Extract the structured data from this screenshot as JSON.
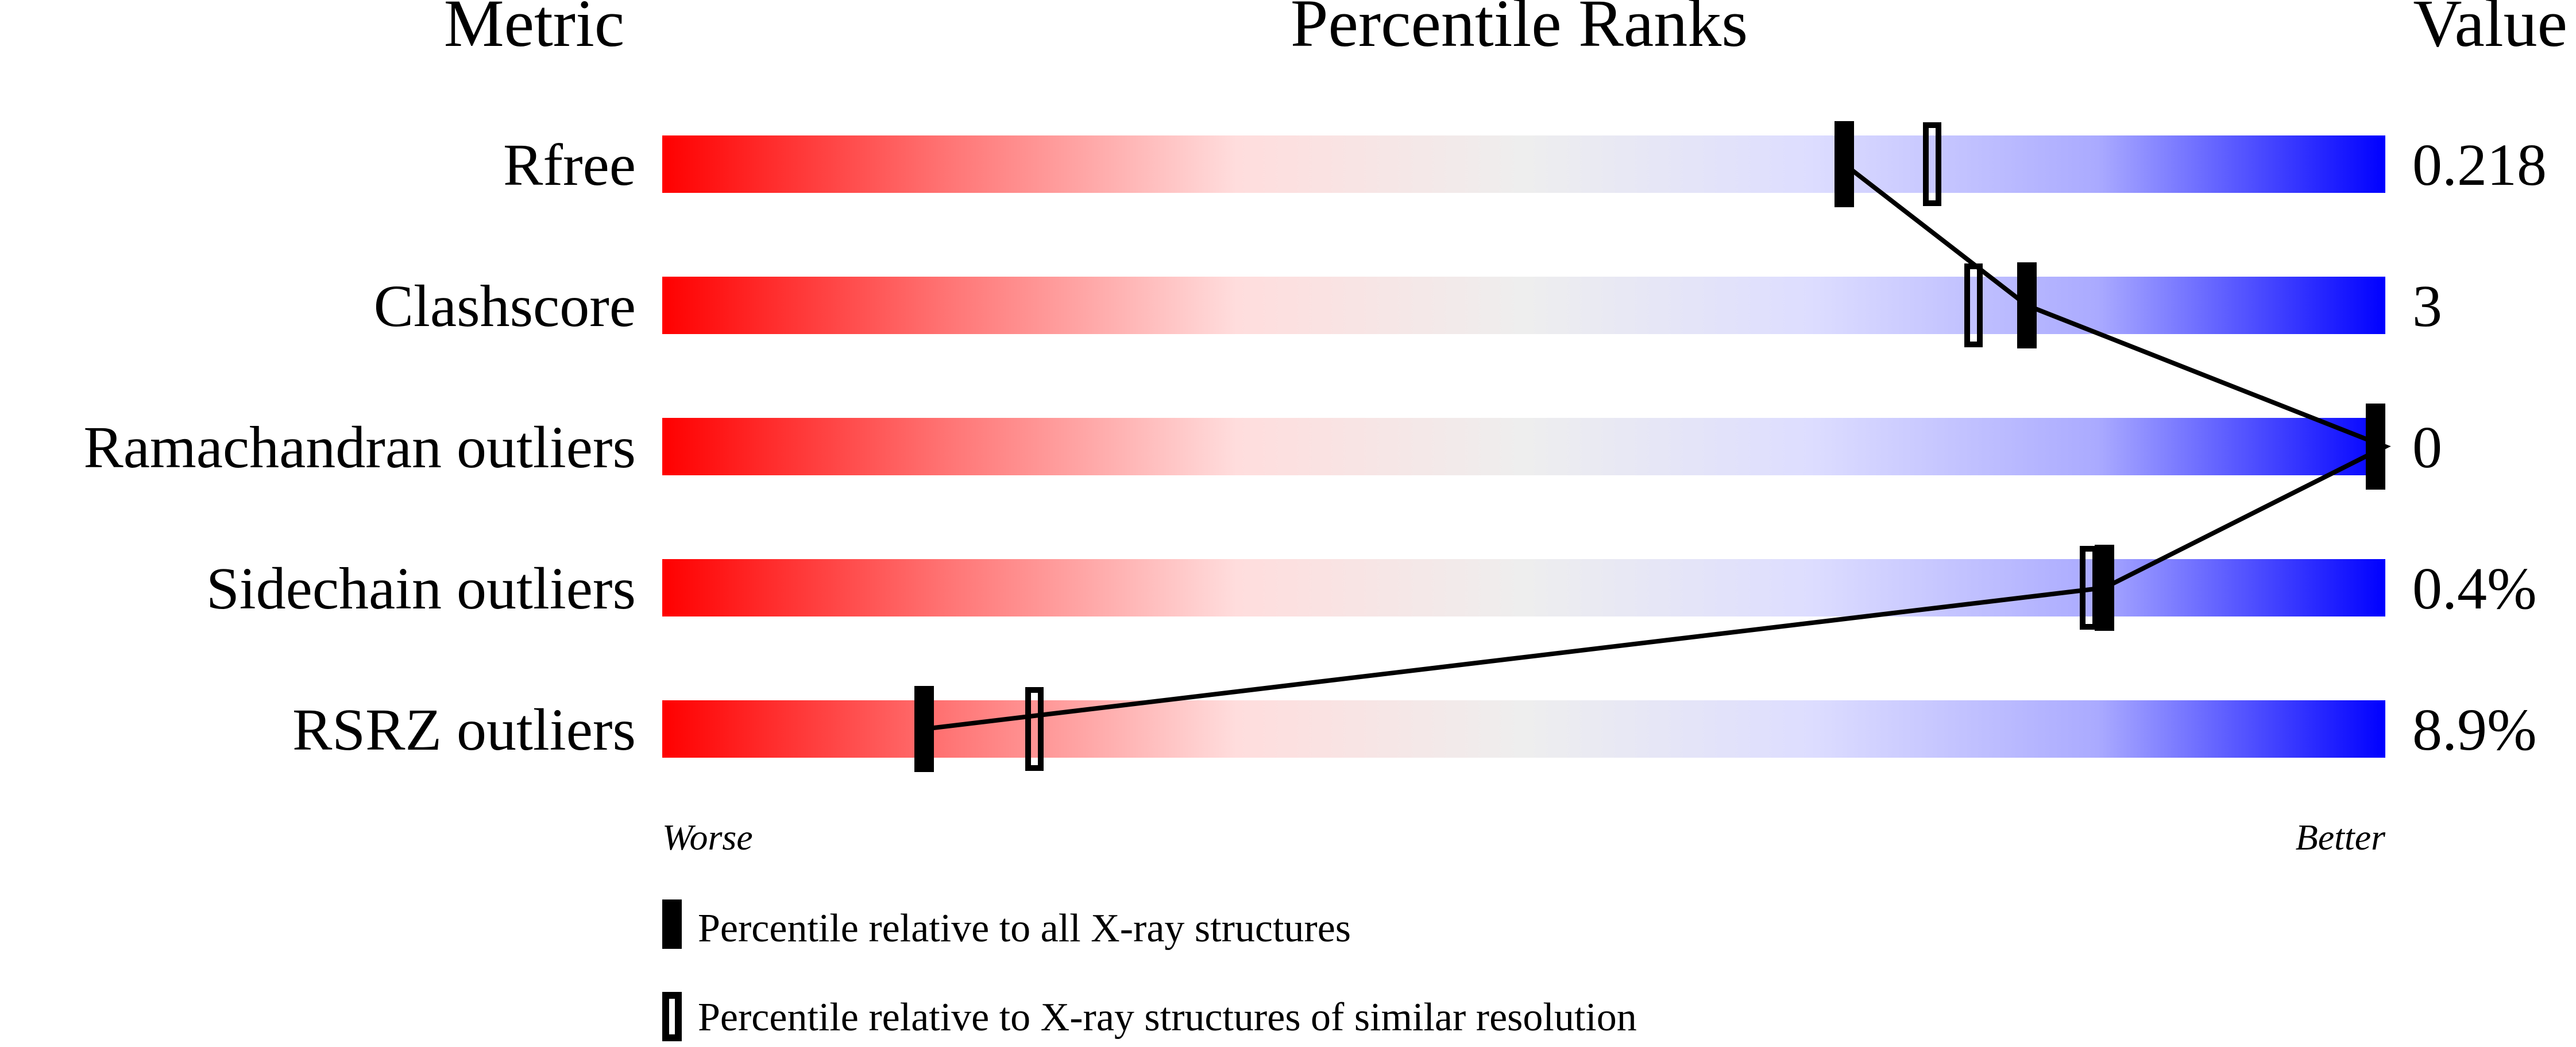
{
  "chart_data": {
    "type": "percentile-bar",
    "headers": {
      "metric": "Metric",
      "ranks": "Percentile Ranks",
      "value": "Value"
    },
    "xlim": [
      0,
      100
    ],
    "axis_labels": {
      "left": "Worse",
      "right": "Better"
    },
    "gradient_colors": [
      "#ff0000",
      "#ff7575",
      "#ffdddd",
      "#eeeeee",
      "#ddddff",
      "#aaaaff",
      "#0000ff"
    ],
    "rows": [
      {
        "metric": "Rfree",
        "value": "0.218",
        "percentile_all": 68.6,
        "percentile_similar": 73.7
      },
      {
        "metric": "Clashscore",
        "value": "3",
        "percentile_all": 79.2,
        "percentile_similar": 76.1
      },
      {
        "metric": "Ramachandran outliers",
        "value": "0",
        "percentile_all": 100,
        "percentile_similar": 100
      },
      {
        "metric": "Sidechain outliers",
        "value": "0.4%",
        "percentile_all": 83.7,
        "percentile_similar": 82.8
      },
      {
        "metric": "RSRZ outliers",
        "value": "8.9%",
        "percentile_all": 15.2,
        "percentile_similar": 21.6
      }
    ],
    "legend": [
      {
        "marker": "filled",
        "label": "Percentile relative to all X-ray structures"
      },
      {
        "marker": "open",
        "label": "Percentile relative to X-ray structures of similar resolution"
      }
    ]
  }
}
